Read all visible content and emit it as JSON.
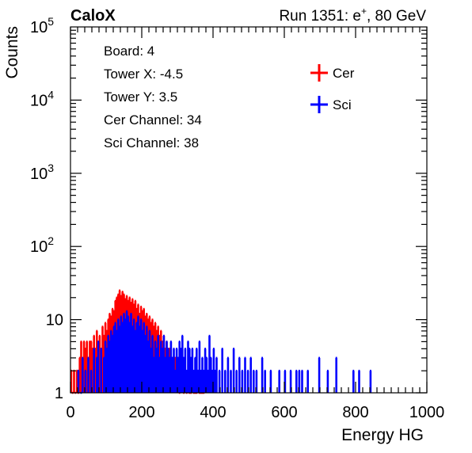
{
  "chart_data": {
    "type": "histogram",
    "title_left": "CaloX",
    "title_right_prefix": "Run 1351: e",
    "title_right_sup": "+",
    "title_right_suffix": ", 80 GeV",
    "xlabel": "Energy HG",
    "ylabel": "Counts",
    "xlim": [
      0,
      1000
    ],
    "ylim": [
      1,
      100000
    ],
    "yscale": "log",
    "x_ticks": [
      "0",
      "200",
      "400",
      "600",
      "800",
      "1000"
    ],
    "y_ticks": [
      {
        "base": "1",
        "exp": ""
      },
      {
        "base": "10",
        "exp": ""
      },
      {
        "base": "10",
        "exp": "2"
      },
      {
        "base": "10",
        "exp": "3"
      },
      {
        "base": "10",
        "exp": "4"
      },
      {
        "base": "10",
        "exp": "5"
      }
    ],
    "info_lines": [
      "Board: 4",
      "Tower X: -4.5",
      "Tower Y: 3.5",
      "Cer Channel: 34",
      "Sci Channel: 38"
    ],
    "legend_position": "top-right",
    "bin_width": 4,
    "series": [
      {
        "name": "Cer",
        "color": "#ff0000",
        "points": [
          [
            2,
            2
          ],
          [
            6,
            1
          ],
          [
            10,
            2
          ],
          [
            14,
            1
          ],
          [
            18,
            2
          ],
          [
            22,
            1
          ],
          [
            26,
            3
          ],
          [
            30,
            5
          ],
          [
            34,
            2
          ],
          [
            38,
            5
          ],
          [
            42,
            4
          ],
          [
            46,
            5
          ],
          [
            50,
            3
          ],
          [
            54,
            5
          ],
          [
            58,
            5
          ],
          [
            62,
            4
          ],
          [
            66,
            6
          ],
          [
            70,
            4
          ],
          [
            74,
            7
          ],
          [
            78,
            5
          ],
          [
            82,
            6
          ],
          [
            86,
            4
          ],
          [
            90,
            8
          ],
          [
            94,
            6
          ],
          [
            98,
            9
          ],
          [
            102,
            7
          ],
          [
            106,
            10
          ],
          [
            110,
            12
          ],
          [
            114,
            11
          ],
          [
            118,
            14
          ],
          [
            122,
            13
          ],
          [
            126,
            18
          ],
          [
            130,
            20
          ],
          [
            134,
            22
          ],
          [
            138,
            25
          ],
          [
            142,
            21
          ],
          [
            146,
            24
          ],
          [
            150,
            22
          ],
          [
            154,
            19
          ],
          [
            158,
            21
          ],
          [
            162,
            18
          ],
          [
            166,
            20
          ],
          [
            170,
            17
          ],
          [
            174,
            19
          ],
          [
            178,
            16
          ],
          [
            182,
            18
          ],
          [
            186,
            14
          ],
          [
            190,
            16
          ],
          [
            194,
            12
          ],
          [
            198,
            15
          ],
          [
            202,
            13
          ],
          [
            206,
            14
          ],
          [
            210,
            11
          ],
          [
            214,
            12
          ],
          [
            218,
            10
          ],
          [
            222,
            11
          ],
          [
            226,
            9
          ],
          [
            230,
            10
          ],
          [
            234,
            8
          ],
          [
            238,
            9
          ],
          [
            242,
            7
          ],
          [
            246,
            8
          ],
          [
            250,
            6
          ],
          [
            254,
            7
          ],
          [
            258,
            5
          ],
          [
            262,
            6
          ],
          [
            266,
            4
          ],
          [
            270,
            5
          ],
          [
            274,
            3
          ],
          [
            278,
            4
          ],
          [
            282,
            2
          ],
          [
            286,
            3
          ],
          [
            290,
            2
          ],
          [
            294,
            3
          ],
          [
            298,
            2
          ],
          [
            302,
            2
          ],
          [
            306,
            1
          ],
          [
            310,
            3
          ],
          [
            314,
            2
          ],
          [
            318,
            1
          ],
          [
            322,
            2
          ],
          [
            326,
            1
          ],
          [
            330,
            2
          ],
          [
            334,
            1
          ],
          [
            338,
            1
          ],
          [
            342,
            2
          ],
          [
            346,
            1
          ],
          [
            350,
            1
          ],
          [
            354,
            1
          ],
          [
            358,
            2
          ],
          [
            362,
            1
          ],
          [
            366,
            1
          ],
          [
            370,
            1
          ],
          [
            374,
            1
          ]
        ]
      },
      {
        "name": "Sci",
        "color": "#0000ff",
        "points": [
          [
            22,
            2
          ],
          [
            30,
            1
          ],
          [
            34,
            3
          ],
          [
            42,
            2
          ],
          [
            50,
            3
          ],
          [
            58,
            2
          ],
          [
            66,
            4
          ],
          [
            74,
            3
          ],
          [
            78,
            5
          ],
          [
            86,
            4
          ],
          [
            94,
            3
          ],
          [
            98,
            5
          ],
          [
            102,
            4
          ],
          [
            106,
            6
          ],
          [
            110,
            5
          ],
          [
            114,
            7
          ],
          [
            118,
            6
          ],
          [
            122,
            8
          ],
          [
            126,
            9
          ],
          [
            130,
            7
          ],
          [
            134,
            10
          ],
          [
            138,
            8
          ],
          [
            142,
            11
          ],
          [
            146,
            9
          ],
          [
            150,
            12
          ],
          [
            154,
            10
          ],
          [
            158,
            13
          ],
          [
            162,
            11
          ],
          [
            166,
            9
          ],
          [
            170,
            12
          ],
          [
            174,
            8
          ],
          [
            178,
            10
          ],
          [
            182,
            7
          ],
          [
            186,
            9
          ],
          [
            190,
            11
          ],
          [
            194,
            8
          ],
          [
            198,
            10
          ],
          [
            202,
            7
          ],
          [
            206,
            9
          ],
          [
            210,
            6
          ],
          [
            214,
            8
          ],
          [
            218,
            5
          ],
          [
            222,
            7
          ],
          [
            226,
            4
          ],
          [
            230,
            6
          ],
          [
            234,
            3
          ],
          [
            238,
            5
          ],
          [
            242,
            4
          ],
          [
            246,
            6
          ],
          [
            250,
            3
          ],
          [
            254,
            5
          ],
          [
            258,
            4
          ],
          [
            262,
            6
          ],
          [
            266,
            3
          ],
          [
            270,
            5
          ],
          [
            274,
            4
          ],
          [
            278,
            3
          ],
          [
            282,
            5
          ],
          [
            286,
            3
          ],
          [
            290,
            4
          ],
          [
            294,
            2
          ],
          [
            298,
            4
          ],
          [
            302,
            3
          ],
          [
            306,
            5
          ],
          [
            310,
            4
          ],
          [
            314,
            6
          ],
          [
            318,
            3
          ],
          [
            322,
            4
          ],
          [
            326,
            2
          ],
          [
            330,
            5
          ],
          [
            334,
            4
          ],
          [
            338,
            3
          ],
          [
            342,
            4
          ],
          [
            346,
            2
          ],
          [
            350,
            3
          ],
          [
            354,
            4
          ],
          [
            358,
            2
          ],
          [
            362,
            5
          ],
          [
            366,
            2
          ],
          [
            370,
            3
          ],
          [
            374,
            2
          ],
          [
            378,
            4
          ],
          [
            382,
            3
          ],
          [
            386,
            2
          ],
          [
            390,
            6
          ],
          [
            394,
            3
          ],
          [
            398,
            2
          ],
          [
            402,
            4
          ],
          [
            406,
            2
          ],
          [
            410,
            3
          ],
          [
            418,
            2
          ],
          [
            426,
            4
          ],
          [
            434,
            2
          ],
          [
            442,
            3
          ],
          [
            450,
            2
          ],
          [
            458,
            4
          ],
          [
            466,
            2
          ],
          [
            474,
            3
          ],
          [
            482,
            2
          ],
          [
            490,
            3
          ],
          [
            498,
            2
          ],
          [
            506,
            3
          ],
          [
            514,
            2
          ],
          [
            522,
            2
          ],
          [
            538,
            3
          ],
          [
            546,
            2
          ],
          [
            562,
            2
          ],
          [
            586,
            2
          ],
          [
            602,
            2
          ],
          [
            618,
            2
          ],
          [
            634,
            2
          ],
          [
            642,
            2
          ],
          [
            650,
            2
          ],
          [
            666,
            2
          ],
          [
            698,
            3
          ],
          [
            722,
            2
          ],
          [
            746,
            3
          ],
          [
            794,
            2
          ],
          [
            810,
            2
          ],
          [
            842,
            2
          ]
        ]
      }
    ]
  }
}
